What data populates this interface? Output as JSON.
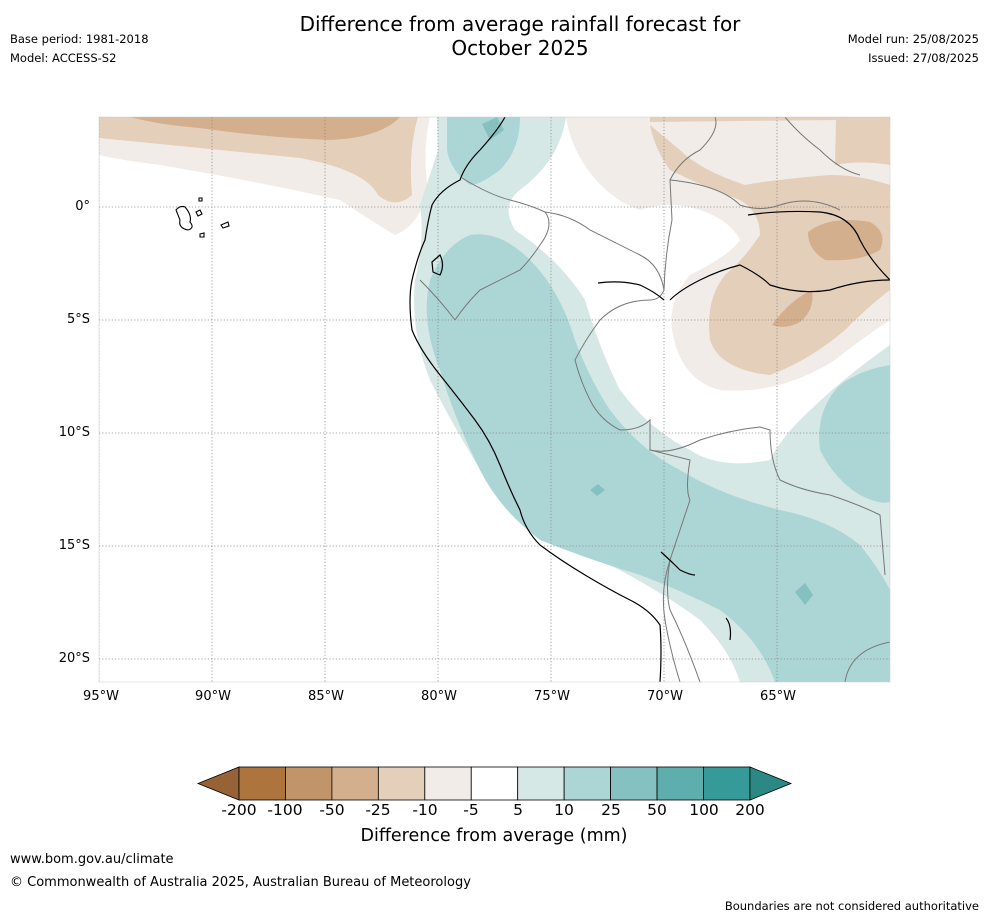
{
  "header": {
    "title_line1": "Difference from average rainfall forecast for",
    "title_line2": "October 2025",
    "base_period": "Base period: 1981-2018",
    "model": "Model: ACCESS-S2",
    "model_run": "Model run: 25/08/2025",
    "issued": "Issued: 27/08/2025"
  },
  "map": {
    "lat_labels": [
      "0°",
      "5°S",
      "10°S",
      "15°S",
      "20°S"
    ],
    "lon_labels": [
      "95°W",
      "90°W",
      "85°W",
      "80°W",
      "75°W",
      "70°W",
      "65°W"
    ]
  },
  "colorbar": {
    "label": "Difference from average (mm)",
    "ticks": [
      "-200",
      "-100",
      "-50",
      "-25",
      "-10",
      "-5",
      "5",
      "10",
      "25",
      "50",
      "100",
      "200"
    ],
    "colors": [
      "#986237",
      "#ad743d",
      "#c19469",
      "#d3af8e",
      "#e4cfbb",
      "#f1ece7",
      "#ffffff",
      "#d5e8e6",
      "#acd6d5",
      "#84c1c0",
      "#5daeac",
      "#369b98",
      "#2c8885"
    ]
  },
  "footer": {
    "url": "www.bom.gov.au/climate",
    "copyright": "© Commonwealth of Australia 2025, Australian Bureau of Meteorology",
    "disclaimer": "Boundaries are not considered authoritative"
  }
}
